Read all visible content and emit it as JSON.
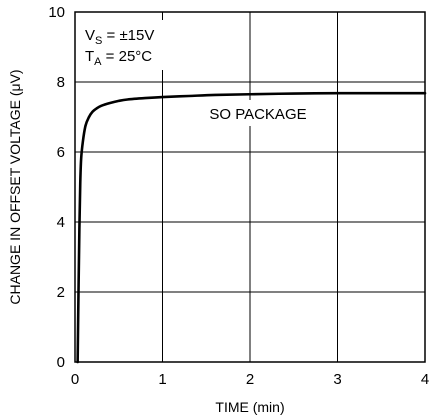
{
  "chart_data": {
    "type": "line",
    "xlabel": "TIME (min)",
    "ylabel": "CHANGE IN OFFSET VOLTAGE (μV)",
    "xlim": [
      0,
      4
    ],
    "ylim": [
      0,
      10
    ],
    "x_ticks": [
      "0",
      "1",
      "2",
      "3",
      "4"
    ],
    "y_ticks": [
      "0",
      "2",
      "4",
      "6",
      "8",
      "10"
    ],
    "grid": true,
    "annotations": {
      "vs_main": "V",
      "vs_sub": "S",
      "vs_rest": " = ±15V",
      "ta_main": "T",
      "ta_sub": "A",
      "ta_rest": " = 25°C"
    },
    "series": [
      {
        "name": "SO PACKAGE",
        "x": [
          0.03,
          0.04,
          0.05,
          0.06,
          0.07,
          0.09,
          0.12,
          0.16,
          0.2,
          0.25,
          0.3,
          0.4,
          0.5,
          0.6,
          0.8,
          1.0,
          1.3,
          1.6,
          2.0,
          2.5,
          3.0,
          3.5,
          4.0
        ],
        "y": [
          0.0,
          2.0,
          3.8,
          5.1,
          5.8,
          6.3,
          6.75,
          7.0,
          7.15,
          7.25,
          7.32,
          7.4,
          7.46,
          7.5,
          7.54,
          7.57,
          7.6,
          7.63,
          7.65,
          7.67,
          7.68,
          7.68,
          7.68
        ]
      }
    ]
  }
}
